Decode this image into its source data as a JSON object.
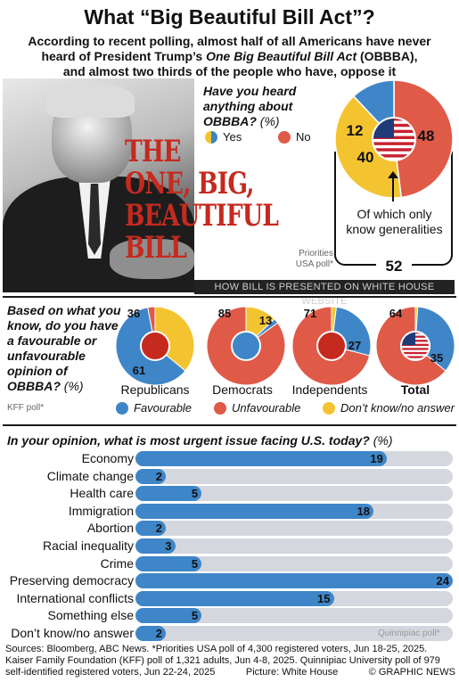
{
  "title": "What “Big Beautiful Bill Act”?",
  "subtitle": {
    "line1": "According to recent polling, almost half of all Americans have never",
    "line2_a": "heard of President Trump’s ",
    "line2_b": "One Big Beautiful Bill Act",
    "line2_c": " (OBBBA),",
    "line3": "and almost two thirds of the people who have, oppose it"
  },
  "photo_text": [
    "THE",
    "ONE, BIG,",
    "BEAUTIFUL",
    "BILL"
  ],
  "banner": "HOW BILL IS PRESENTED ON WHITE HOUSE WEBSITE",
  "heard": {
    "question_a": "Have you heard anything about OBBBA?",
    "question_b": " (%)",
    "yes_label": "Yes",
    "no_label": "No",
    "of_which": "Of which only know generalities",
    "source": "Priorities USA poll*",
    "yes_total": "52"
  },
  "favour": {
    "question_a": "Based on what you know, do you have a favourable or unfavourable opinion of OBBBA?",
    "question_b": " (%)",
    "source": "KFF poll*",
    "legend": {
      "favourable": "Favourable",
      "unfavourable": "Unfavourable",
      "dk": "Don’t know/no answer"
    }
  },
  "urgent": {
    "question_a": "In your opinion, what is most urgent issue facing U.S. today?",
    "question_b": " (%)",
    "source": "Quinnipiac poll*"
  },
  "sources": {
    "line1": "Sources: Bloomberg, ABC News. *Priorities USA poll of 4,300 registered voters, Jun 18-25, 2025.",
    "line2": "Kaiser Family Foundation (KFF) poll of 1,321 adults, Jun 4-8, 2025. Quinnipiac University poll of 979",
    "line3a": "self-identified registered voters, Jun 22-24, 2025",
    "picture": "Picture: White House",
    "copyright": "© GRAPHIC NEWS"
  },
  "colors": {
    "favourable": "#3e86c8",
    "unfavourable": "#e05a48",
    "dk": "#f4c430",
    "track": "#d4d7de"
  },
  "chart_data": [
    {
      "type": "pie",
      "title": "Have you heard anything about OBBBA? (%)",
      "slices": [
        {
          "name": "No",
          "value": 48,
          "label": "48"
        },
        {
          "name": "Yes (only know generalities)",
          "value": 40,
          "label": "40"
        },
        {
          "name": "Yes",
          "value": 12,
          "label": "12"
        }
      ]
    },
    {
      "type": "pie",
      "title": "Based on what you know, do you have a favourable or unfavourable opinion of OBBBA? (%)",
      "groups": [
        {
          "name": "Republicans",
          "favourable": 61,
          "unfavourable": 3,
          "dk": 36,
          "labels": {
            "dk": "36",
            "favourable": "61"
          }
        },
        {
          "name": "Democrats",
          "favourable": 2,
          "unfavourable": 85,
          "dk": 13,
          "labels": {
            "unfavourable": "85",
            "dk": "13"
          }
        },
        {
          "name": "Independents",
          "favourable": 27,
          "unfavourable": 71,
          "dk": 2,
          "labels": {
            "unfavourable": "71",
            "favourable": "27"
          }
        },
        {
          "name": "Total",
          "favourable": 35,
          "unfavourable": 64,
          "dk": 1,
          "labels": {
            "unfavourable": "64",
            "favourable": "35"
          }
        }
      ]
    },
    {
      "type": "bar",
      "title": "In your opinion, what is most urgent issue facing U.S. today? (%)",
      "categories": [
        "Economy",
        "Climate change",
        "Health care",
        "Immigration",
        "Abortion",
        "Racial inequality",
        "Crime",
        "Preserving democracy",
        "International conflicts",
        "Something else",
        "Don’t know/no answer"
      ],
      "values": [
        19,
        2,
        5,
        18,
        2,
        3,
        5,
        24,
        15,
        5,
        2
      ],
      "xlim": [
        0,
        24
      ]
    }
  ]
}
